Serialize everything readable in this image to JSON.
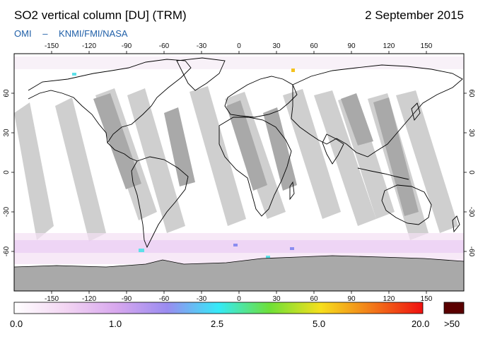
{
  "header": {
    "title": "SO2 vertical column [DU] (TRM)",
    "date": "2 September 2015",
    "credit_instrument": "OMI",
    "credit_separator": "–",
    "credit_agencies": "KNMI/FMI/NASA"
  },
  "map": {
    "projection": "equirectangular",
    "lon_range": [
      -180,
      180
    ],
    "lat_range": [
      -90,
      90
    ],
    "lon_ticks": [
      -150,
      -120,
      -90,
      -60,
      -30,
      0,
      30,
      60,
      90,
      120,
      150
    ],
    "lat_ticks": [
      60,
      30,
      0,
      -30,
      -60
    ],
    "colors": {
      "swath_gap": "#cfcfcf",
      "swath_dark": "#a9a9a9",
      "polar_night": "#a9a9a9",
      "coastline": "#000000",
      "background": "#ffffff"
    }
  },
  "colorbar": {
    "labels": [
      "0.0",
      "1.0",
      "2.5",
      "5.0",
      "20.0",
      ">50"
    ],
    "gradient_stops": [
      "#ffffff",
      "#f3d6f3",
      "#d8a8ee",
      "#9a8cf0",
      "#35eaf8",
      "#6ee038",
      "#f6df1c",
      "#f27a1a",
      "#ef1010"
    ],
    "overflow_color": "#5a0000"
  }
}
